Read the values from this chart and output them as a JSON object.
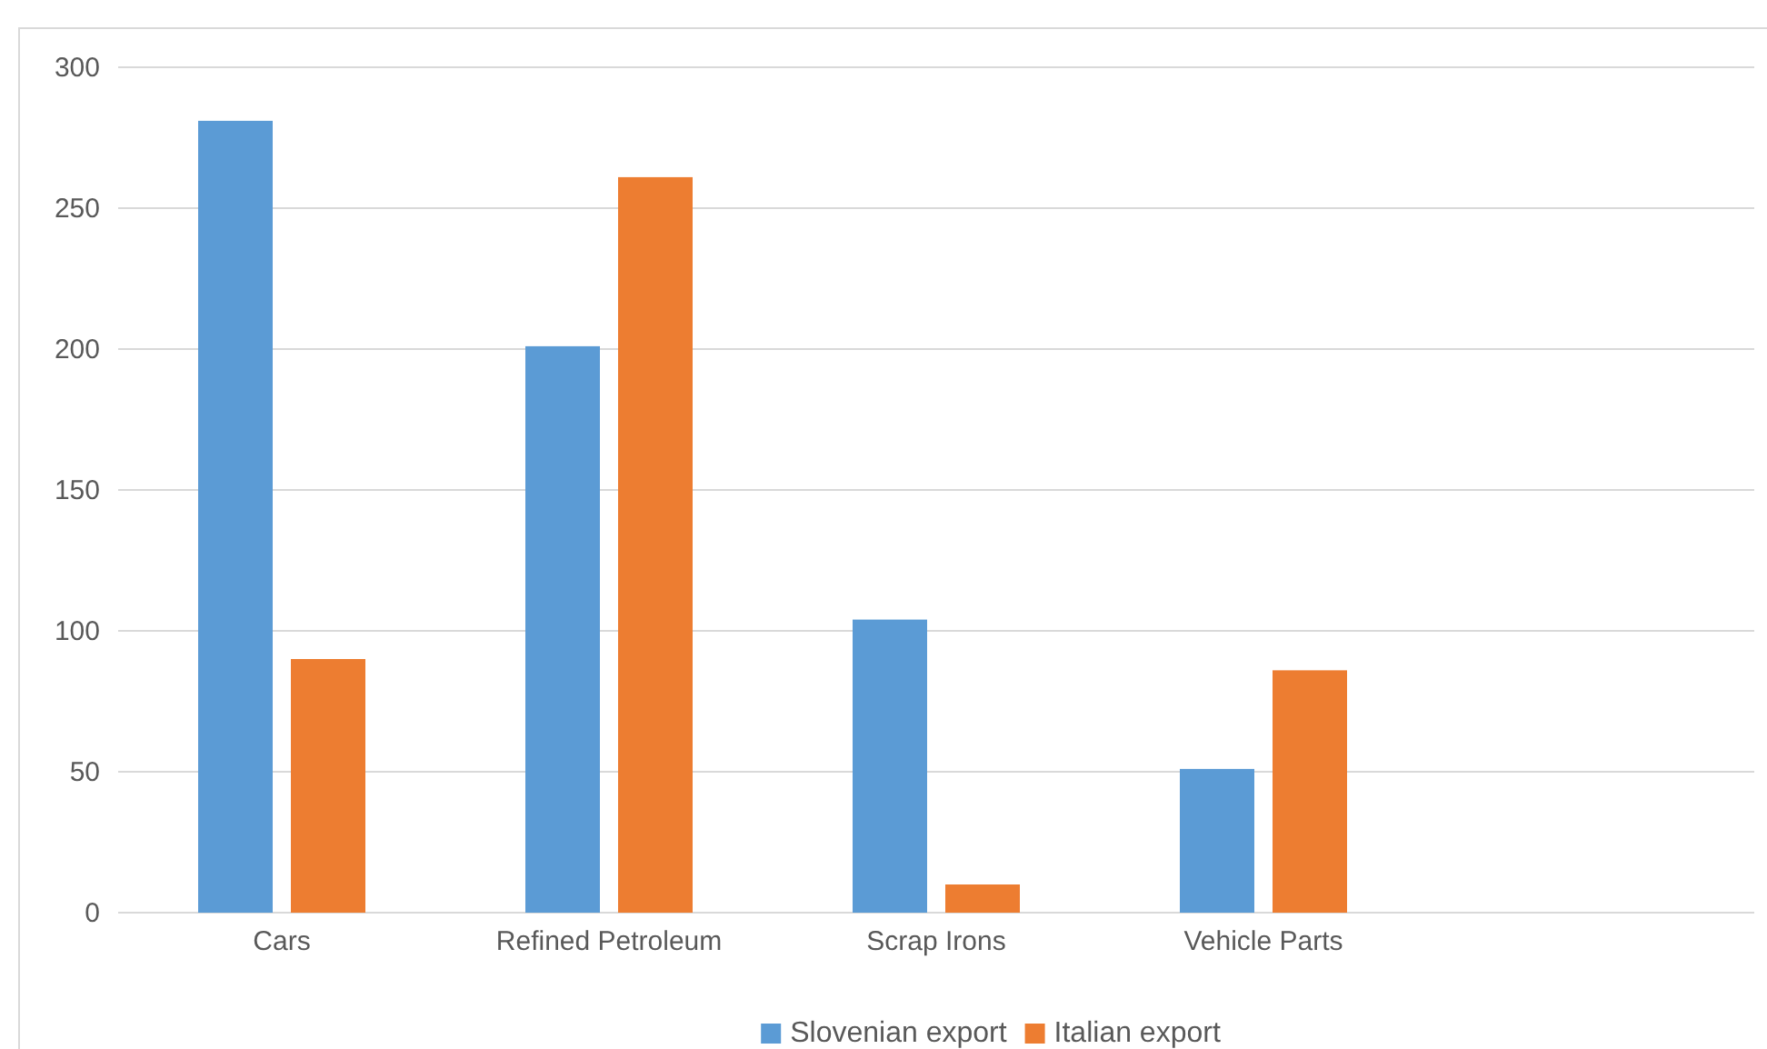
{
  "chart_data": {
    "type": "bar",
    "categories": [
      "Cars",
      "Refined Petroleum",
      "Scrap Irons",
      "Vehicle Parts",
      null
    ],
    "series": [
      {
        "name": "Slovenian export",
        "color": "#5b9bd5",
        "values": [
          281,
          201,
          104,
          51,
          null
        ]
      },
      {
        "name": "Italian export",
        "color": "#ed7d31",
        "values": [
          90,
          261,
          10,
          86,
          null
        ]
      }
    ],
    "ylim": [
      0,
      300
    ],
    "yticks": [
      0,
      50,
      100,
      150,
      200,
      250,
      300
    ],
    "grid": "y",
    "legend": "bottom"
  }
}
